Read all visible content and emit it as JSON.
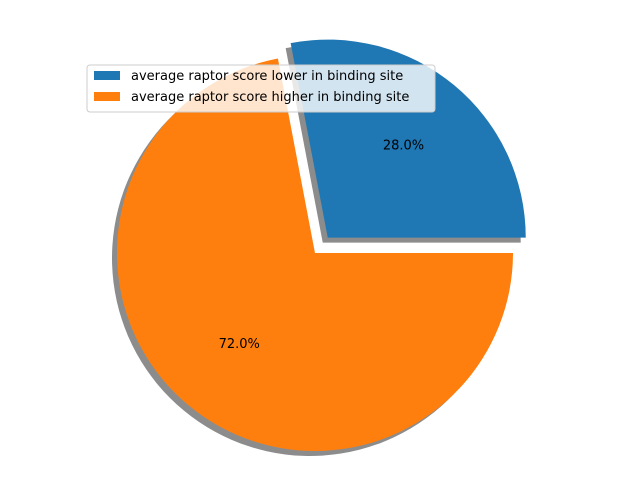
{
  "chart_data": {
    "type": "pie",
    "title": "",
    "slices": [
      {
        "label": "average raptor score lower in binding site",
        "value": 28.0,
        "percent_label": "28.0%",
        "color": "#1f77b4",
        "exploded": true
      },
      {
        "label": "average raptor score higher in binding site",
        "value": 72.0,
        "percent_label": "72.0%",
        "color": "#ff7f0e",
        "exploded": false
      }
    ],
    "shadow": true,
    "start_angle_deg": 0,
    "direction": "counterclockwise",
    "legend_placement": "upper-left"
  }
}
